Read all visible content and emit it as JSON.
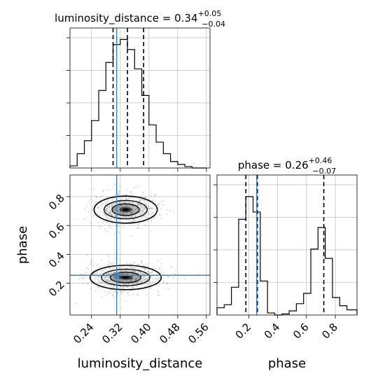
{
  "chart_data": {
    "type": "corner",
    "parameters": [
      "luminosity_distance",
      "phase"
    ],
    "truths": {
      "luminosity_distance": 0.31,
      "phase": 0.255
    },
    "panels": [
      {
        "id": "hist-luminosity_distance",
        "type": "histogram",
        "title": {
          "name": "luminosity_distance",
          "value": "0.34",
          "plus": "+0.05",
          "minus": "−0.04",
          "prefix": " = "
        },
        "xlim": [
          0.18,
          0.57
        ],
        "bin_edges": [
          0.18,
          0.2,
          0.22,
          0.24,
          0.26,
          0.28,
          0.3,
          0.32,
          0.34,
          0.36,
          0.38,
          0.4,
          0.42,
          0.44,
          0.46,
          0.48,
          0.5,
          0.52,
          0.54,
          0.56
        ],
        "counts": [
          0.3,
          2,
          3.8,
          6.6,
          10.8,
          14.7,
          17.2,
          17.9,
          16.5,
          13.8,
          10.1,
          6,
          3.6,
          2,
          0.9,
          0.5,
          0.2,
          0,
          0
        ],
        "ylim": [
          0,
          19.5
        ],
        "quantiles": [
          0.3,
          0.34,
          0.385
        ]
      },
      {
        "id": "hist-phase",
        "type": "histogram",
        "title": {
          "name": "phase",
          "value": "0.26",
          "plus": "+0.46",
          "minus": "−0.07",
          "prefix": " = "
        },
        "xlim": [
          -0.02,
          0.95
        ],
        "xticks": [
          0.2,
          0.4,
          0.6,
          0.8
        ],
        "xlabel": "phase",
        "bin_edges": [
          -0.02,
          0.03,
          0.08,
          0.13,
          0.18,
          0.23,
          0.28,
          0.33,
          0.38,
          0.43,
          0.48,
          0.53,
          0.58,
          0.63,
          0.68,
          0.73,
          0.78,
          0.83,
          0.88,
          0.93,
          0.95
        ],
        "counts": [
          0.7,
          1,
          2.7,
          9.3,
          11.5,
          10,
          3.3,
          0.2,
          0,
          0.1,
          0.4,
          1.1,
          2.1,
          6.4,
          8.5,
          5.5,
          1.7,
          0.9,
          0.5,
          0.5
        ],
        "ylim": [
          0,
          13.6
        ],
        "quantiles": [
          0.18,
          0.26,
          0.72
        ]
      },
      {
        "id": "2d-phase-vs-luminosity_distance",
        "type": "density2d",
        "x": "luminosity_distance",
        "y": "phase",
        "xlim": [
          0.18,
          0.57
        ],
        "ylim": [
          -0.02,
          0.95
        ],
        "xticks": [
          0.24,
          0.32,
          0.4,
          0.48,
          0.56
        ],
        "yticks": [
          0.2,
          0.4,
          0.6,
          0.8
        ],
        "xlabel": "luminosity_distance",
        "ylabel": "phase",
        "modes": [
          {
            "cx": 0.335,
            "cy": 0.24,
            "sx": 0.045,
            "sy": 0.045
          },
          {
            "cx": 0.335,
            "cy": 0.71,
            "sx": 0.04,
            "sy": 0.05
          }
        ]
      }
    ],
    "colors": {
      "histogram": "#000000",
      "truth": "#4682b4",
      "grid": "#b0b0b0",
      "scatter": "#9a9a9a",
      "fill": "#000000"
    },
    "grid": true
  }
}
